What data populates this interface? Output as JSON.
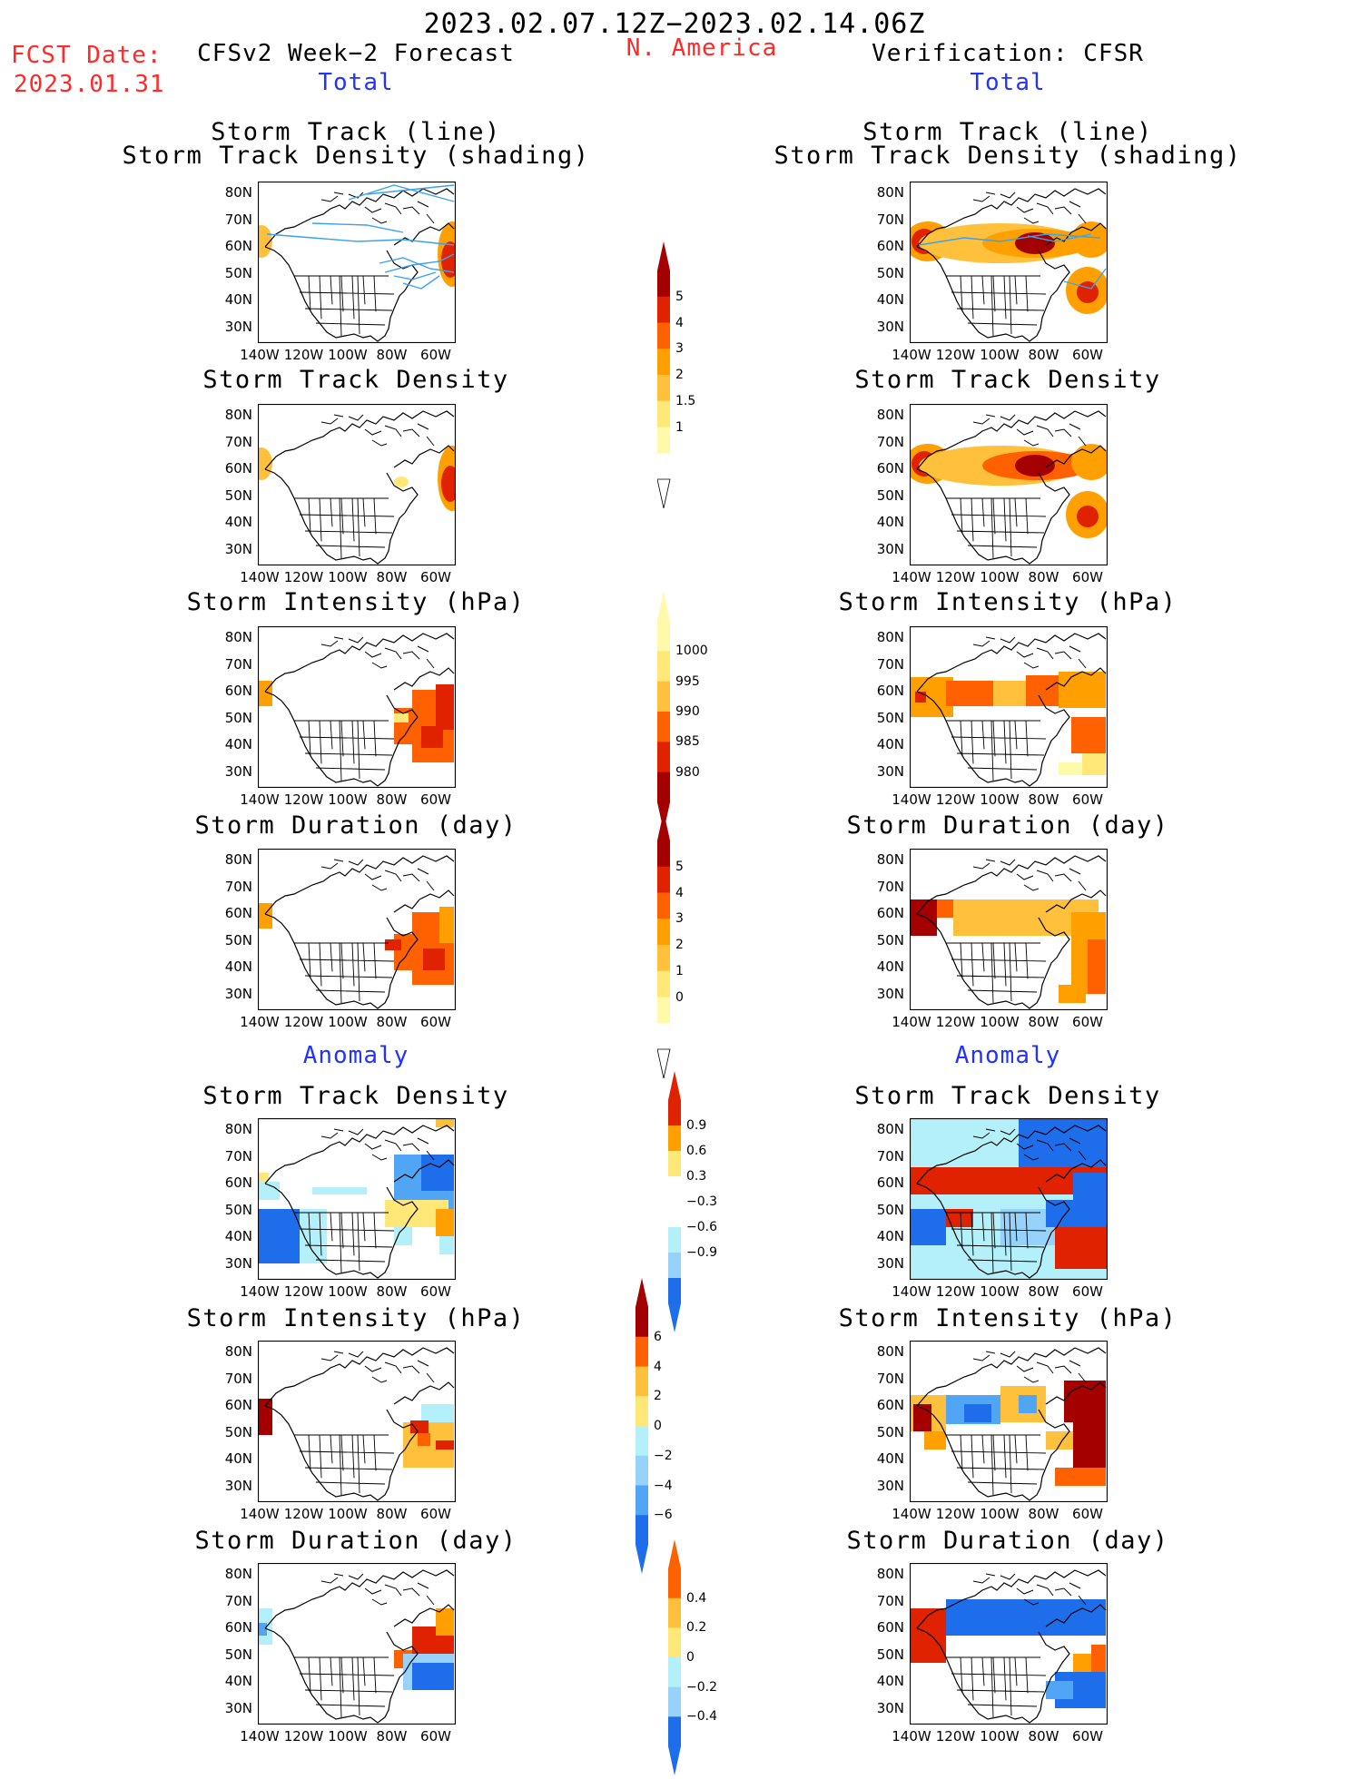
{
  "header": {
    "period": "2023.02.07.12Z−2023.02.14.06Z",
    "fcst_label": "FCST Date:",
    "fcst_date": "2023.01.31",
    "left_title": "CFSv2 Week−2 Forecast",
    "region": "N. America",
    "right_title": "Verification: CFSR",
    "total_label": "Total",
    "anomaly_label": "Anomaly"
  },
  "panel_titles": {
    "track_line": "Storm Track (line)",
    "track_shading": "Storm Track Density (shading)",
    "density": "Storm Track Density",
    "intensity": "Storm Intensity (hPa)",
    "duration": "Storm Duration (day)"
  },
  "axes": {
    "lat_labels": [
      "80N",
      "70N",
      "60N",
      "50N",
      "40N",
      "30N"
    ],
    "lon_labels": [
      "140W",
      "120W",
      "100W",
      "80W",
      "60W"
    ]
  },
  "colorbars": {
    "total_density": [
      "5",
      "4",
      "3",
      "2",
      "1.5",
      "1"
    ],
    "total_intensity": [
      "1000",
      "995",
      "990",
      "985",
      "980"
    ],
    "total_duration": [
      "5",
      "4",
      "3",
      "2",
      "1",
      "0"
    ],
    "anom_density": [
      "0.9",
      "0.6",
      "0.3",
      "−0.3",
      "−0.6",
      "−0.9"
    ],
    "anom_intensity": [
      "6",
      "4",
      "2",
      "0",
      "−2",
      "−4",
      "−6"
    ],
    "anom_duration": [
      "0.4",
      "0.2",
      "0",
      "−0.2",
      "−0.4"
    ]
  },
  "colors": {
    "seq": [
      "#fffaaa",
      "#ffe878",
      "#ffc03c",
      "#ffa000",
      "#ff6000",
      "#e12200",
      "#a50000"
    ],
    "neg": [
      "#b4f0fa",
      "#96d2fa",
      "#50a5f5",
      "#1e6eeb"
    ],
    "title_red": "#ff2a2a",
    "title_blue": "#2233ff"
  }
}
